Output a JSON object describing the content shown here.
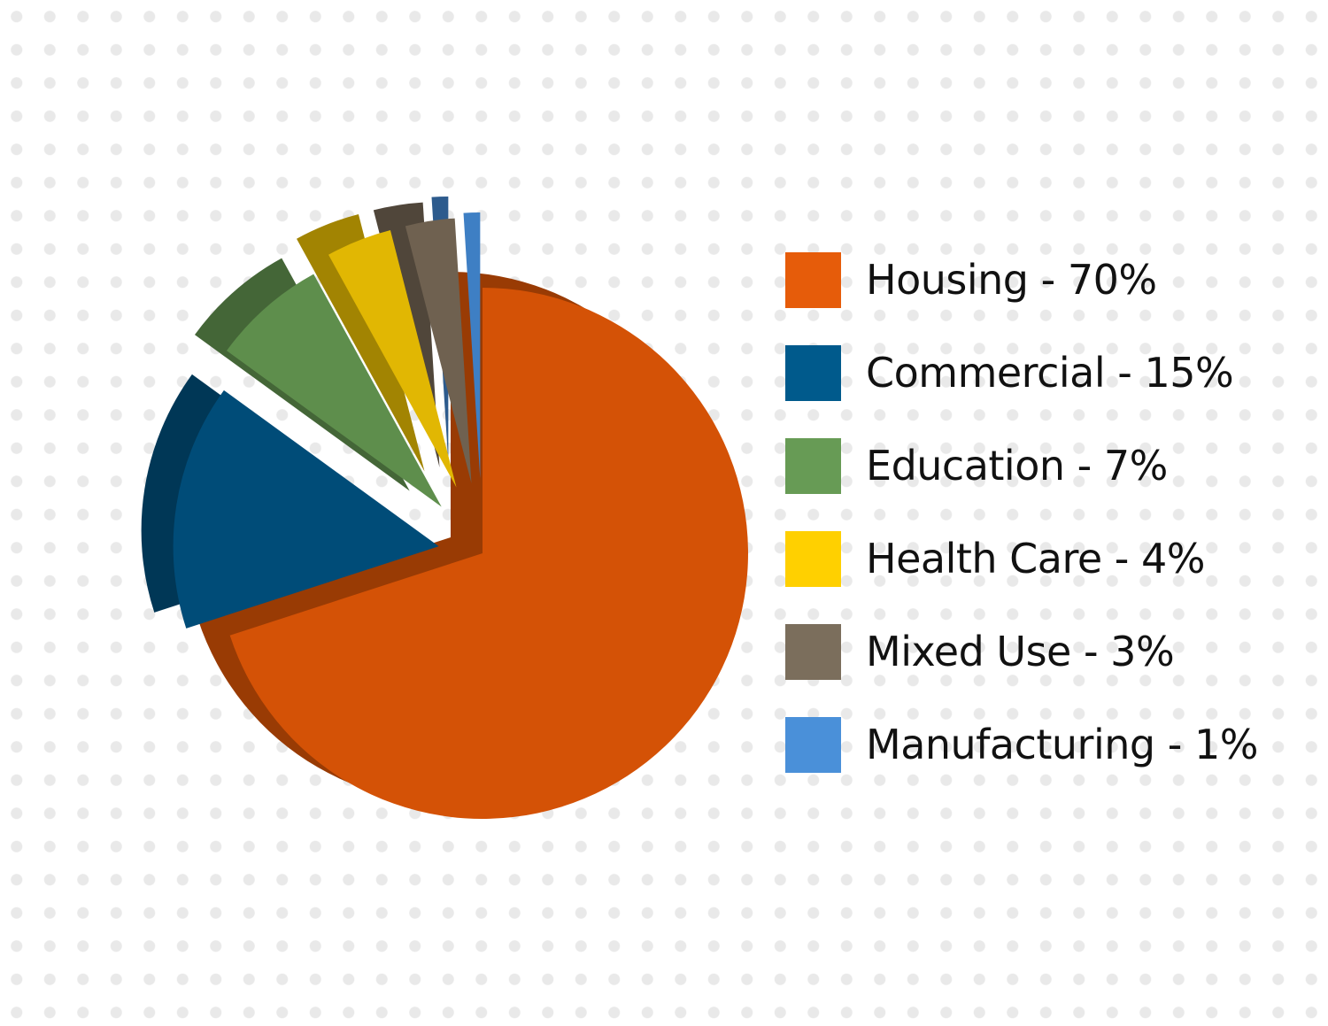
{
  "chart_data": {
    "type": "pie",
    "style": "3d-exploded",
    "legend_position": "right",
    "slices": [
      {
        "label": "Housing - 70%",
        "value": 70,
        "color": "#D45206",
        "legend_color": "#E65C0A"
      },
      {
        "label": "Commercial - 15%",
        "value": 15,
        "color": "#004C78",
        "legend_color": "#005A8C"
      },
      {
        "label": "Education - 7%",
        "value": 7,
        "color": "#5E8E4C",
        "legend_color": "#679B55"
      },
      {
        "label": "Health Care - 4%",
        "value": 4,
        "color": "#E1B703",
        "legend_color": "#FFD000"
      },
      {
        "label": "Mixed Use - 3%",
        "value": 3,
        "color": "#6F6150",
        "legend_color": "#7B6E5C"
      },
      {
        "label": "Manufacturing - 1%",
        "value": 1,
        "color": "#3E7FC4",
        "legend_color": "#4A90D9"
      }
    ]
  }
}
